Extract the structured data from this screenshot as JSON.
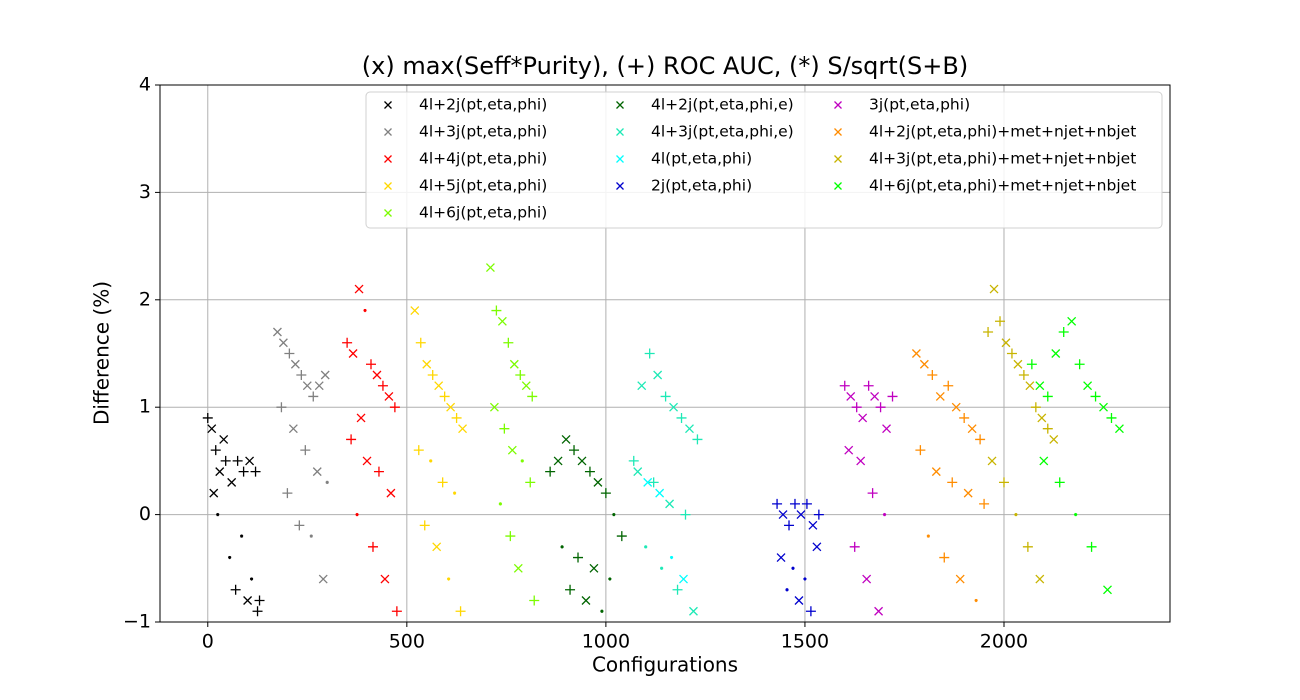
{
  "chart_data": {
    "type": "scatter",
    "title": "(x) max(Seff*Purity), (+) ROC AUC, (*) S/sqrt(S+B)",
    "x_label": "Configurations",
    "y_label": "Difference (%)",
    "xlim": [
      -120,
      2417
    ],
    "ylim": [
      -1,
      4
    ],
    "xticks": [
      0,
      500,
      1000,
      1500,
      2000
    ],
    "yticks": [
      {
        "value": -1,
        "label": "−1"
      },
      0,
      1,
      2,
      3,
      4
    ],
    "grid": true,
    "series": [
      {
        "name": "4l+2j(pt,eta,phi)",
        "color": "#000000",
        "x": [
          0,
          10,
          20,
          30,
          45,
          60,
          75,
          90,
          105,
          120,
          15,
          40,
          70,
          100,
          125,
          25,
          55,
          85,
          110,
          130
        ],
        "values": [
          0.9,
          0.8,
          0.6,
          0.4,
          0.5,
          0.3,
          0.5,
          0.4,
          0.5,
          0.4,
          0.2,
          0.7,
          -0.7,
          -0.8,
          -0.9,
          0.0,
          -0.4,
          -0.2,
          -0.6,
          -0.8
        ],
        "markers": [
          "+",
          "x",
          "+",
          "x",
          "+",
          "x",
          "+",
          "+",
          "x",
          "+",
          "x",
          "x",
          "+",
          "x",
          "+",
          "*",
          "*",
          "*",
          "*",
          "+"
        ]
      },
      {
        "name": "4l+3j(pt,eta,phi)",
        "color": "#808080",
        "x": [
          175,
          190,
          205,
          220,
          235,
          250,
          265,
          280,
          295,
          185,
          215,
          245,
          275,
          300,
          200,
          230,
          260,
          290
        ],
        "values": [
          1.7,
          1.6,
          1.5,
          1.4,
          1.3,
          1.2,
          1.1,
          1.2,
          1.3,
          1.0,
          0.8,
          0.6,
          0.4,
          0.3,
          0.2,
          -0.1,
          -0.2,
          -0.6
        ],
        "markers": [
          "x",
          "x",
          "+",
          "x",
          "+",
          "x",
          "+",
          "x",
          "x",
          "+",
          "x",
          "+",
          "x",
          "*",
          "+",
          "+",
          "*",
          "x"
        ]
      },
      {
        "name": "4l+4j(pt,eta,phi)",
        "color": "#ff0000",
        "x": [
          350,
          365,
          380,
          395,
          410,
          425,
          440,
          455,
          470,
          385,
          360,
          400,
          430,
          460,
          375,
          415,
          445,
          475
        ],
        "values": [
          1.6,
          1.5,
          2.1,
          1.9,
          1.4,
          1.3,
          1.2,
          1.1,
          1.0,
          0.9,
          0.7,
          0.5,
          0.4,
          0.2,
          0.0,
          -0.3,
          -0.6,
          -0.9
        ],
        "markers": [
          "+",
          "x",
          "x",
          "*",
          "+",
          "x",
          "+",
          "x",
          "+",
          "x",
          "+",
          "x",
          "+",
          "x",
          "*",
          "+",
          "x",
          "+"
        ]
      },
      {
        "name": "4l+5j(pt,eta,phi)",
        "color": "#ffd700",
        "x": [
          520,
          535,
          550,
          565,
          580,
          595,
          610,
          625,
          640,
          530,
          560,
          590,
          620,
          545,
          575,
          605,
          635
        ],
        "values": [
          1.9,
          1.6,
          1.4,
          1.3,
          1.2,
          1.1,
          1.0,
          0.9,
          0.8,
          0.6,
          0.5,
          0.3,
          0.2,
          -0.1,
          -0.3,
          -0.6,
          -0.9
        ],
        "markers": [
          "x",
          "+",
          "x",
          "+",
          "x",
          "+",
          "x",
          "+",
          "x",
          "+",
          "*",
          "+",
          "*",
          "+",
          "x",
          "*",
          "+"
        ]
      },
      {
        "name": "4l+6j(pt,eta,phi)",
        "color": "#7cfc00",
        "x": [
          710,
          725,
          740,
          755,
          770,
          785,
          800,
          815,
          720,
          745,
          765,
          790,
          810,
          735,
          760,
          780,
          820
        ],
        "values": [
          2.3,
          1.9,
          1.8,
          1.6,
          1.4,
          1.3,
          1.2,
          1.1,
          1.0,
          0.8,
          0.6,
          0.5,
          0.3,
          0.1,
          -0.2,
          -0.5,
          -0.8
        ],
        "markers": [
          "x",
          "+",
          "x",
          "+",
          "x",
          "+",
          "x",
          "+",
          "x",
          "+",
          "x",
          "*",
          "+",
          "*",
          "+",
          "x",
          "+"
        ]
      },
      {
        "name": "4l+2j(pt,eta,phi,e)",
        "color": "#006400",
        "x": [
          860,
          880,
          900,
          920,
          940,
          960,
          980,
          1000,
          1020,
          1040,
          890,
          930,
          970,
          1010,
          910,
          950,
          990
        ],
        "values": [
          0.4,
          0.5,
          0.7,
          0.6,
          0.5,
          0.4,
          0.3,
          0.2,
          0.0,
          -0.2,
          -0.3,
          -0.4,
          -0.5,
          -0.6,
          -0.7,
          -0.8,
          -0.9
        ],
        "markers": [
          "+",
          "x",
          "x",
          "+",
          "x",
          "+",
          "x",
          "+",
          "*",
          "+",
          "*",
          "+",
          "x",
          "*",
          "+",
          "x",
          "*"
        ]
      },
      {
        "name": "4l+3j(pt,eta,phi,e)",
        "color": "#1de9b6",
        "x": [
          1070,
          1090,
          1110,
          1130,
          1150,
          1170,
          1190,
          1210,
          1230,
          1080,
          1120,
          1160,
          1200,
          1100,
          1140,
          1180,
          1220
        ],
        "values": [
          0.5,
          1.2,
          1.5,
          1.3,
          1.1,
          1.0,
          0.9,
          0.8,
          0.7,
          0.4,
          0.3,
          0.1,
          0.0,
          -0.3,
          -0.5,
          -0.7,
          -0.9
        ],
        "markers": [
          "+",
          "x",
          "+",
          "x",
          "+",
          "x",
          "+",
          "x",
          "+",
          "x",
          "+",
          "x",
          "+",
          "*",
          "*",
          "+",
          "x"
        ]
      },
      {
        "name": "4l(pt,eta,phi)",
        "color": "#00ffff",
        "x": [
          1105,
          1135,
          1165,
          1195
        ],
        "values": [
          0.3,
          0.2,
          -0.4,
          -0.6
        ],
        "markers": [
          "x",
          "x",
          "*",
          "x"
        ]
      },
      {
        "name": "2j(pt,eta,phi)",
        "color": "#0000cd",
        "x": [
          1430,
          1445,
          1460,
          1475,
          1490,
          1505,
          1520,
          1535,
          1440,
          1470,
          1500,
          1530,
          1455,
          1485,
          1515
        ],
        "values": [
          0.1,
          0.0,
          -0.1,
          0.1,
          0.0,
          0.1,
          -0.1,
          0.0,
          -0.4,
          -0.5,
          -0.6,
          -0.3,
          -0.7,
          -0.8,
          -0.9
        ],
        "markers": [
          "+",
          "x",
          "+",
          "+",
          "x",
          "+",
          "x",
          "+",
          "x",
          "*",
          "*",
          "x",
          "*",
          "x",
          "+"
        ]
      },
      {
        "name": "3j(pt,eta,phi)",
        "color": "#c000c0",
        "x": [
          1600,
          1615,
          1630,
          1645,
          1660,
          1675,
          1690,
          1705,
          1720,
          1610,
          1640,
          1670,
          1700,
          1625,
          1655,
          1685
        ],
        "values": [
          1.2,
          1.1,
          1.0,
          0.9,
          1.2,
          1.1,
          1.0,
          0.8,
          1.1,
          0.6,
          0.5,
          0.2,
          0.0,
          -0.3,
          -0.6,
          -0.9
        ],
        "markers": [
          "+",
          "x",
          "+",
          "x",
          "+",
          "x",
          "+",
          "x",
          "+",
          "x",
          "x",
          "+",
          "*",
          "+",
          "x",
          "x"
        ]
      },
      {
        "name": "4l+2j(pt,eta,phi)+met+njet+nbjet",
        "color": "#ff8c00",
        "x": [
          1780,
          1800,
          1820,
          1840,
          1860,
          1880,
          1900,
          1920,
          1940,
          1790,
          1830,
          1870,
          1910,
          1950,
          1810,
          1850,
          1890,
          1930
        ],
        "values": [
          1.5,
          1.4,
          1.3,
          1.1,
          1.2,
          1.0,
          0.9,
          0.8,
          0.7,
          0.6,
          0.4,
          0.3,
          0.2,
          0.1,
          -0.2,
          -0.4,
          -0.6,
          -0.8
        ],
        "markers": [
          "x",
          "x",
          "+",
          "x",
          "+",
          "x",
          "+",
          "x",
          "+",
          "+",
          "x",
          "+",
          "x",
          "+",
          "*",
          "+",
          "x",
          "*"
        ]
      },
      {
        "name": "4l+3j(pt,eta,phi)+met+njet+nbjet",
        "color": "#c8b400",
        "x": [
          1960,
          1975,
          1990,
          2005,
          2020,
          2035,
          2050,
          2065,
          2080,
          2095,
          2110,
          2125,
          1970,
          2000,
          2030,
          2060,
          2090
        ],
        "values": [
          1.7,
          2.1,
          1.8,
          1.6,
          1.5,
          1.4,
          1.3,
          1.2,
          1.0,
          0.9,
          0.8,
          0.7,
          0.5,
          0.3,
          0.0,
          -0.3,
          -0.6
        ],
        "markers": [
          "+",
          "x",
          "+",
          "x",
          "+",
          "x",
          "+",
          "x",
          "+",
          "x",
          "+",
          "x",
          "x",
          "+",
          "*",
          "+",
          "x"
        ]
      },
      {
        "name": "4l+6j(pt,eta,phi)+met+njet+nbjet",
        "color": "#00ff00",
        "x": [
          2070,
          2090,
          2110,
          2130,
          2150,
          2170,
          2190,
          2210,
          2230,
          2250,
          2270,
          2290,
          2100,
          2140,
          2180,
          2220,
          2260
        ],
        "values": [
          1.4,
          1.2,
          1.1,
          1.5,
          1.7,
          1.8,
          1.4,
          1.2,
          1.1,
          1.0,
          0.9,
          0.8,
          0.5,
          0.3,
          0.0,
          -0.3,
          -0.7
        ],
        "markers": [
          "+",
          "x",
          "+",
          "x",
          "+",
          "x",
          "+",
          "x",
          "+",
          "x",
          "+",
          "x",
          "x",
          "+",
          "*",
          "+",
          "x"
        ]
      }
    ]
  }
}
